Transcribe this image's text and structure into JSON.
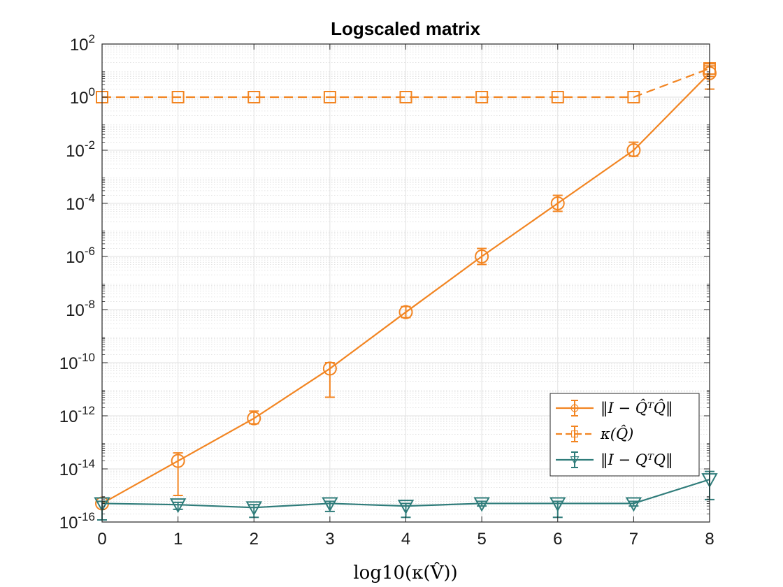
{
  "chart_data": {
    "type": "line",
    "title": "Logscaled matrix",
    "xlabel": "log10(κ(V̂))",
    "ylabel": "",
    "yscale": "log",
    "xlim": [
      0,
      8
    ],
    "ylim": [
      1e-16,
      100
    ],
    "xticks": [
      0,
      1,
      2,
      3,
      4,
      5,
      6,
      7,
      8
    ],
    "xtick_labels": [
      "0",
      "1",
      "2",
      "3",
      "4",
      "5",
      "6",
      "7",
      "8"
    ],
    "yticks_exp": [
      -16,
      -14,
      -12,
      -10,
      -8,
      -6,
      -4,
      -2,
      0,
      2
    ],
    "ytick_base": "10",
    "grid": true,
    "legend_position": "lower-right",
    "x": [
      0,
      1,
      2,
      3,
      4,
      5,
      6,
      7,
      8
    ],
    "series": [
      {
        "name": "‖I − Q̂ᵀQ̂‖",
        "color": "#F28522",
        "line_style": "solid",
        "marker": "circle",
        "values": [
          5e-16,
          2e-14,
          8e-13,
          6e-11,
          8e-09,
          1e-06,
          0.0001,
          0.01,
          8
        ],
        "err_low": [
          1.2e-16,
          1e-15,
          5e-13,
          5e-12,
          5e-09,
          5e-07,
          5e-05,
          0.006,
          2
        ],
        "err_high": [
          6e-16,
          4e-14,
          1.5e-12,
          1e-10,
          1.3e-08,
          2e-06,
          0.0002,
          0.02,
          15
        ]
      },
      {
        "name": "κ(Q̂)",
        "color": "#F28522",
        "line_style": "dashed",
        "marker": "square",
        "values": [
          1,
          1,
          1,
          1,
          1,
          1,
          1,
          1,
          12
        ],
        "err_low": [
          1,
          1,
          1,
          1,
          1,
          1,
          1,
          1,
          6
        ],
        "err_high": [
          1,
          1,
          1,
          1,
          1,
          1,
          1,
          1,
          18
        ]
      },
      {
        "name": "‖I − QᵀQ‖",
        "color": "#2F7C7A",
        "line_style": "solid",
        "marker": "triangle-down",
        "values": [
          5e-16,
          4.5e-16,
          3.5e-16,
          5e-16,
          4e-16,
          5e-16,
          5e-16,
          5e-16,
          4e-15
        ],
        "err_low": [
          1.2e-16,
          3e-16,
          1.5e-16,
          2.5e-16,
          1.5e-16,
          4e-16,
          1.5e-16,
          4e-16,
          7e-16
        ],
        "err_high": [
          6e-16,
          5.5e-16,
          4.5e-16,
          6e-16,
          5e-16,
          6e-16,
          6e-16,
          6e-16,
          8e-15
        ]
      }
    ]
  }
}
